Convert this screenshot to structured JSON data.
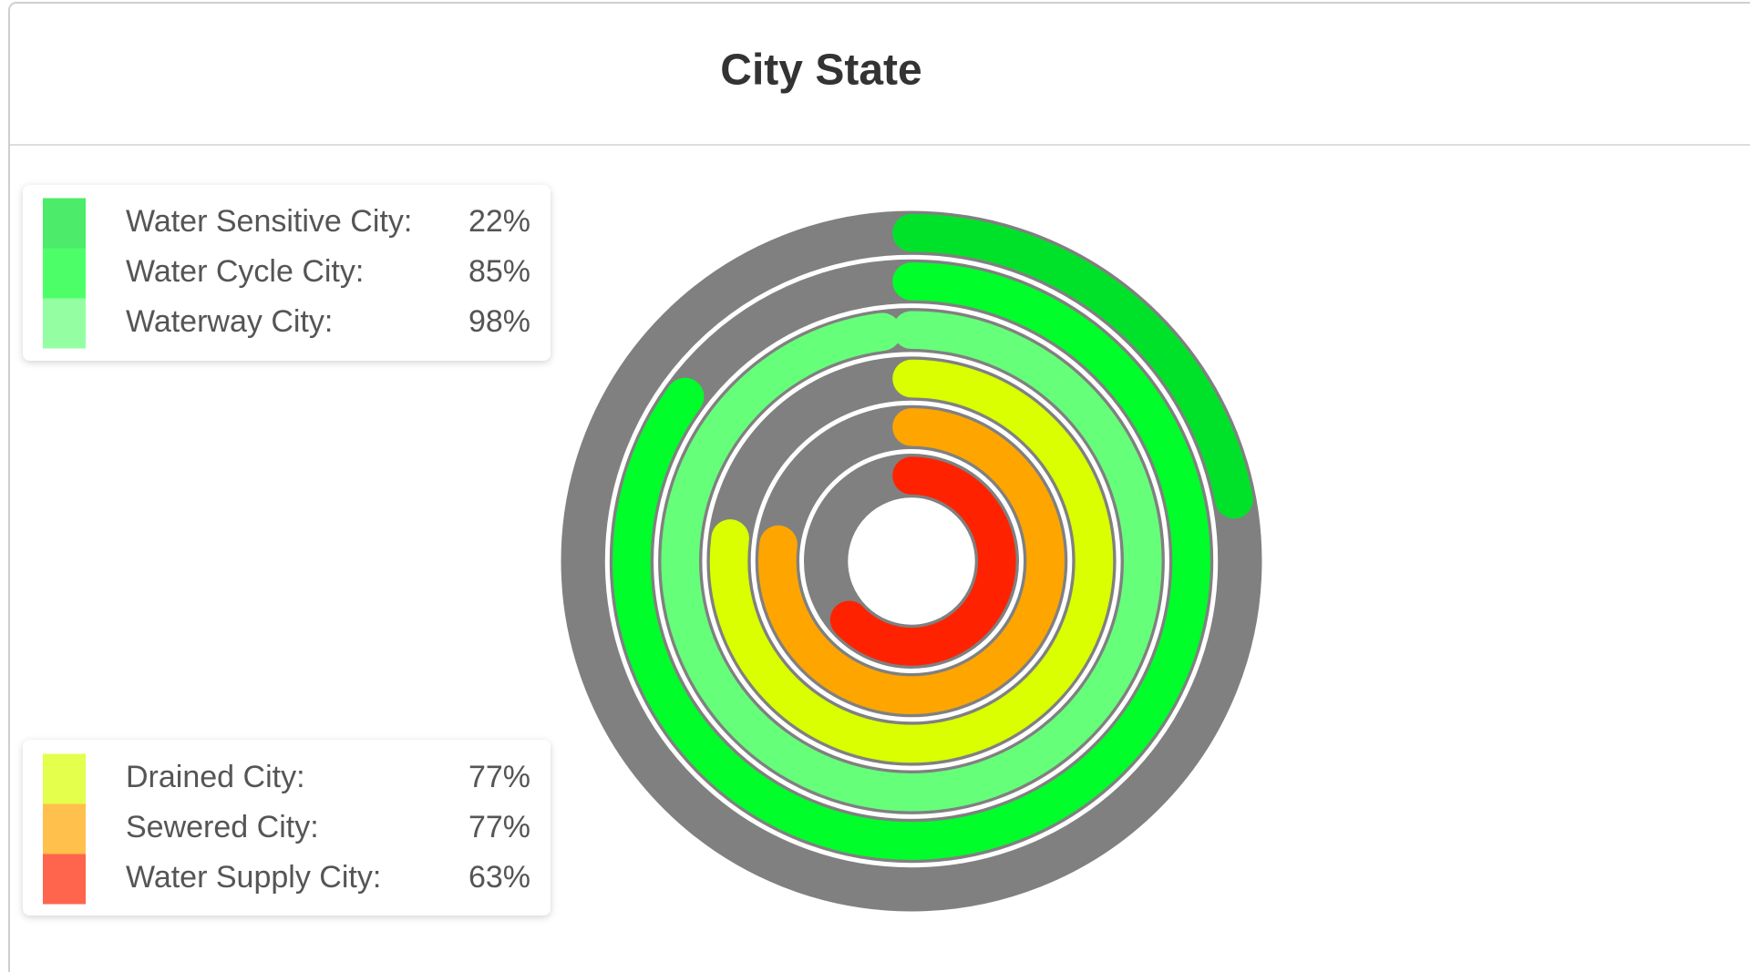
{
  "chart_data": {
    "type": "radialBar",
    "title": "City State",
    "categories": [
      "Water Sensitive City:",
      "Water Cycle City:",
      "Waterway City:",
      "Drained City:",
      "Sewered City:",
      "Water Supply City:"
    ],
    "values": [
      22,
      85,
      98,
      77,
      77,
      63
    ],
    "value_labels": [
      "22%",
      "85%",
      "98%",
      "77%",
      "77%",
      "63%"
    ],
    "colors": [
      "#00e22a",
      "#00ff2a",
      "#66ff7a",
      "#d9ff00",
      "#ffa500",
      "#ff2200"
    ],
    "track_color": "#808080",
    "ylim": [
      0,
      100
    ]
  }
}
